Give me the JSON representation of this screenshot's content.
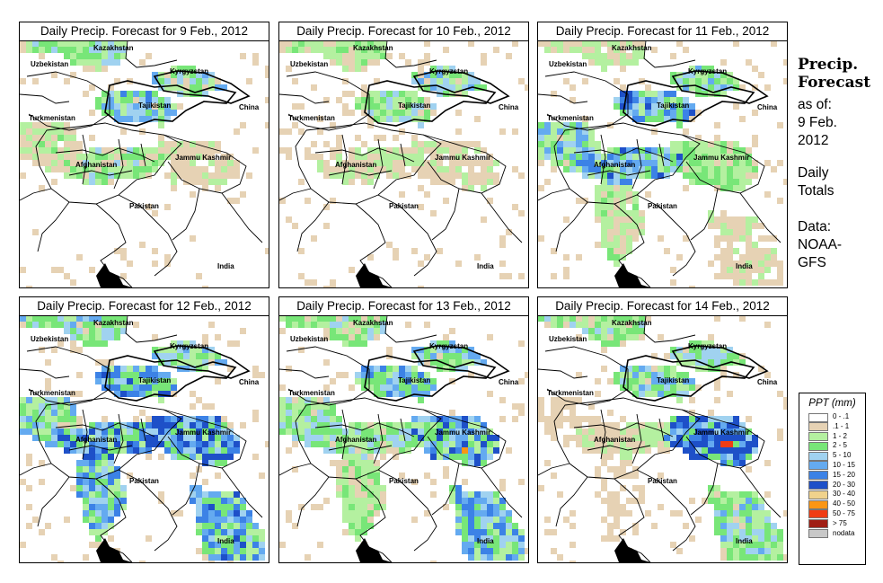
{
  "side": {
    "title_line1": "Precip.",
    "title_line2": "Forecast",
    "asof_line1": "as of:",
    "asof_line2": "9 Feb.",
    "asof_line3": "2012",
    "totals_line1": "Daily",
    "totals_line2": "Totals",
    "data_line1": "Data:",
    "data_line2": "NOAA-",
    "data_line3": "GFS"
  },
  "map_labels": {
    "kazakhstan": "Kazakhstan",
    "uzbekistan": "Uzbekistan",
    "kyrgyzstan": "Kyrgyzstan",
    "tajikistan": "Tajikistan",
    "turkmenistan": "Turkmenistan",
    "china": "China",
    "afghanistan": "Afghanistan",
    "jammu_kashmir": "Jammu Kashmir",
    "pakistan": "Pakistan",
    "india": "India"
  },
  "panels": [
    {
      "title": "Daily Precip. Forecast for  9 Feb., 2012"
    },
    {
      "title": "Daily Precip. Forecast for  10 Feb., 2012"
    },
    {
      "title": "Daily Precip. Forecast for  11 Feb., 2012"
    },
    {
      "title": "Daily Precip. Forecast for  12 Feb., 2012"
    },
    {
      "title": "Daily Precip. Forecast for  13 Feb., 2012"
    },
    {
      "title": "Daily Precip. Forecast for  14 Feb., 2012"
    }
  ],
  "legend": {
    "title": "PPT (mm)",
    "items": [
      {
        "label": "0 - .1",
        "color": "#ffffff"
      },
      {
        "label": ".1 - 1",
        "color": "#e6d2b4"
      },
      {
        "label": "1 - 2",
        "color": "#b4f0a0"
      },
      {
        "label": "2 - 5",
        "color": "#78e678"
      },
      {
        "label": "5 - 10",
        "color": "#a0d2f0"
      },
      {
        "label": "10 - 15",
        "color": "#64aaf0"
      },
      {
        "label": "15 - 20",
        "color": "#3c82e6"
      },
      {
        "label": "20 - 30",
        "color": "#1e50c8"
      },
      {
        "label": "30 - 40",
        "color": "#f0d28c"
      },
      {
        "label": "40 - 50",
        "color": "#fa9614"
      },
      {
        "label": "50 - 75",
        "color": "#f03c14"
      },
      {
        "label": "> 75",
        "color": "#a01e14"
      },
      {
        "label": "nodata",
        "color": "#c8c8c8"
      }
    ]
  }
}
